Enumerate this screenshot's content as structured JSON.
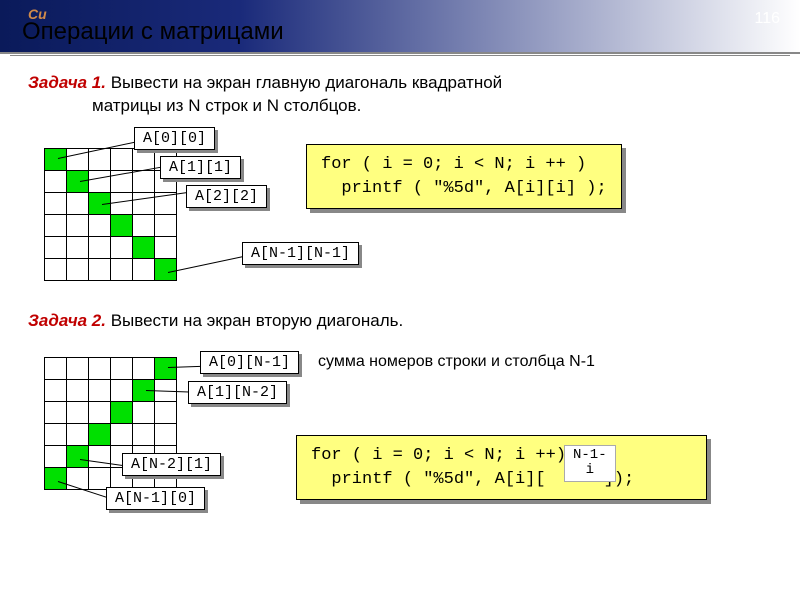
{
  "page_number": "116",
  "corner": "Си",
  "title": "Операции с матрицами",
  "task1": {
    "label": "Задача 1.",
    "line1": "Вывести на экран главную диагональ квадратной",
    "line2": "матрицы из N строк и N столбцов.",
    "grid": {
      "rows": 6,
      "cols": 6,
      "diag": "main",
      "cell_fill": "#00e000"
    },
    "labels": {
      "a": "A[0][0]",
      "b": "A[1][1]",
      "c": "A[2][2]",
      "d": "A[N-1][N-1]"
    },
    "code": {
      "line1": "for ( i = 0; i < N; i ++ )",
      "line2": "  printf ( \"%5d\", A[i][i] );"
    }
  },
  "task2": {
    "label": "Задача 2.",
    "line1": "Вывести на экран вторую диагональ.",
    "grid": {
      "rows": 6,
      "cols": 6,
      "diag": "anti",
      "cell_fill": "#00e000"
    },
    "labels": {
      "a": "A[0][N-1]",
      "b": "A[1][N-2]",
      "c": "A[N-2][1]",
      "d": "A[N-1][0]"
    },
    "note": "сумма номеров строки и столбца N-1",
    "code": {
      "line1": "for ( i = 0; i < N; i ++)",
      "line2_a": "  printf ( \"%5d\", A[i][",
      "line2_b": "]);"
    },
    "answer": {
      "l1": "N-1-",
      "l2": "i"
    }
  }
}
